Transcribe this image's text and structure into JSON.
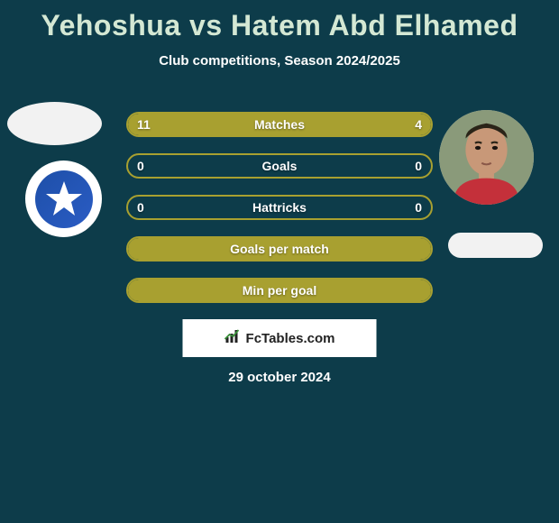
{
  "title": "Yehoshua vs Hatem Abd Elhamed",
  "subtitle": "Club competitions, Season 2024/2025",
  "players": {
    "left": {
      "avatar_bg": "#f2f2f2",
      "club_outer_bg": "#ffffff",
      "club_inner_bg": "#2a5cc4"
    },
    "right": {
      "avatar_bg": "#b89078",
      "placeholder_bg": "#f2f2f2"
    }
  },
  "bars": [
    {
      "label": "Matches",
      "left_val": "11",
      "right_val": "4",
      "left_pct": 70,
      "right_pct": 30,
      "show_vals": true,
      "fill_both": true
    },
    {
      "label": "Goals",
      "left_val": "0",
      "right_val": "0",
      "left_pct": 0,
      "right_pct": 0,
      "show_vals": true,
      "fill_both": false
    },
    {
      "label": "Hattricks",
      "left_val": "0",
      "right_val": "0",
      "left_pct": 0,
      "right_pct": 0,
      "show_vals": true,
      "fill_both": false
    },
    {
      "label": "Goals per match",
      "left_val": "",
      "right_val": "",
      "left_pct": 100,
      "right_pct": 0,
      "show_vals": false,
      "fill_both": false,
      "full": true
    },
    {
      "label": "Min per goal",
      "left_val": "",
      "right_val": "",
      "left_pct": 100,
      "right_pct": 0,
      "show_vals": false,
      "fill_both": false,
      "full": true
    }
  ],
  "style": {
    "bar_color": "#a8a030",
    "bar_border": "#a8a030",
    "bg": "#0d3c4a",
    "title_color": "#d4e8d4",
    "text_color": "#ffffff"
  },
  "footer": {
    "logo_text": "FcTables.com",
    "date": "29 october 2024"
  }
}
